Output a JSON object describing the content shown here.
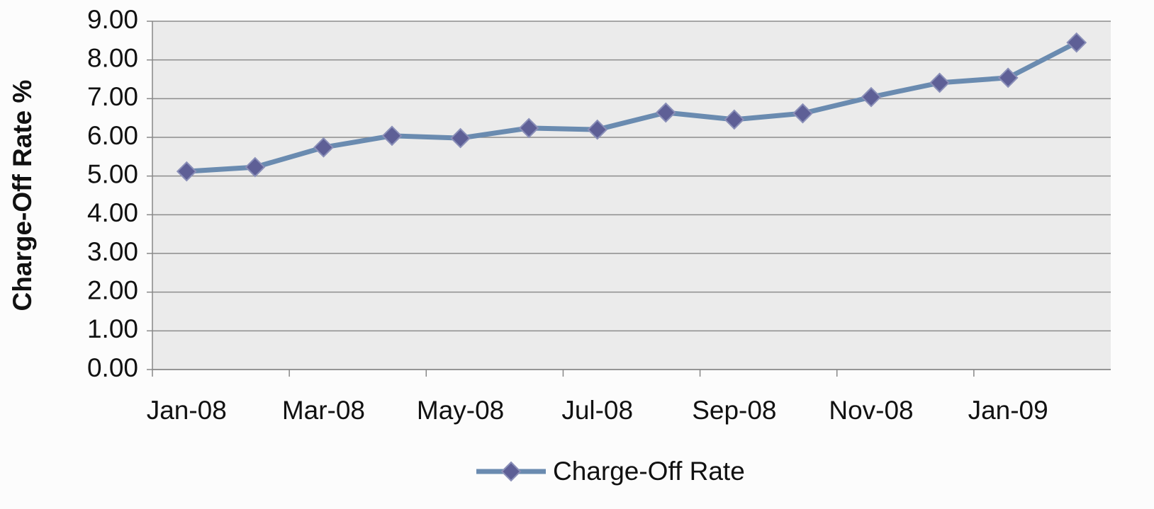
{
  "chart_data": {
    "type": "line",
    "y_label": "Charge-Off Rate %",
    "categories": [
      "Jan-08",
      null,
      "Mar-08",
      null,
      "May-08",
      null,
      "Jul-08",
      null,
      "Sep-08",
      null,
      "Nov-08",
      null,
      "Jan-09",
      null
    ],
    "series": [
      {
        "name": "Charge-Off Rate",
        "color": "#6a8bb0",
        "marker_color": "#5e5f96",
        "values": [
          5.12,
          5.23,
          5.74,
          6.04,
          5.98,
          6.24,
          6.2,
          6.64,
          6.46,
          6.62,
          7.04,
          7.41,
          7.54,
          8.45
        ]
      }
    ],
    "ylim": [
      0,
      9
    ],
    "yticks": [
      {
        "value": 0,
        "label": "0.00"
      },
      {
        "value": 1,
        "label": "1.00"
      },
      {
        "value": 2,
        "label": "2.00"
      },
      {
        "value": 3,
        "label": "3.00"
      },
      {
        "value": 4,
        "label": "4.00"
      },
      {
        "value": 5,
        "label": "5.00"
      },
      {
        "value": 6,
        "label": "6.00"
      },
      {
        "value": 7,
        "label": "7.00"
      },
      {
        "value": 8,
        "label": "8.00"
      },
      {
        "value": 9,
        "label": "9.00"
      }
    ],
    "grid": true,
    "legend": "bottom"
  }
}
